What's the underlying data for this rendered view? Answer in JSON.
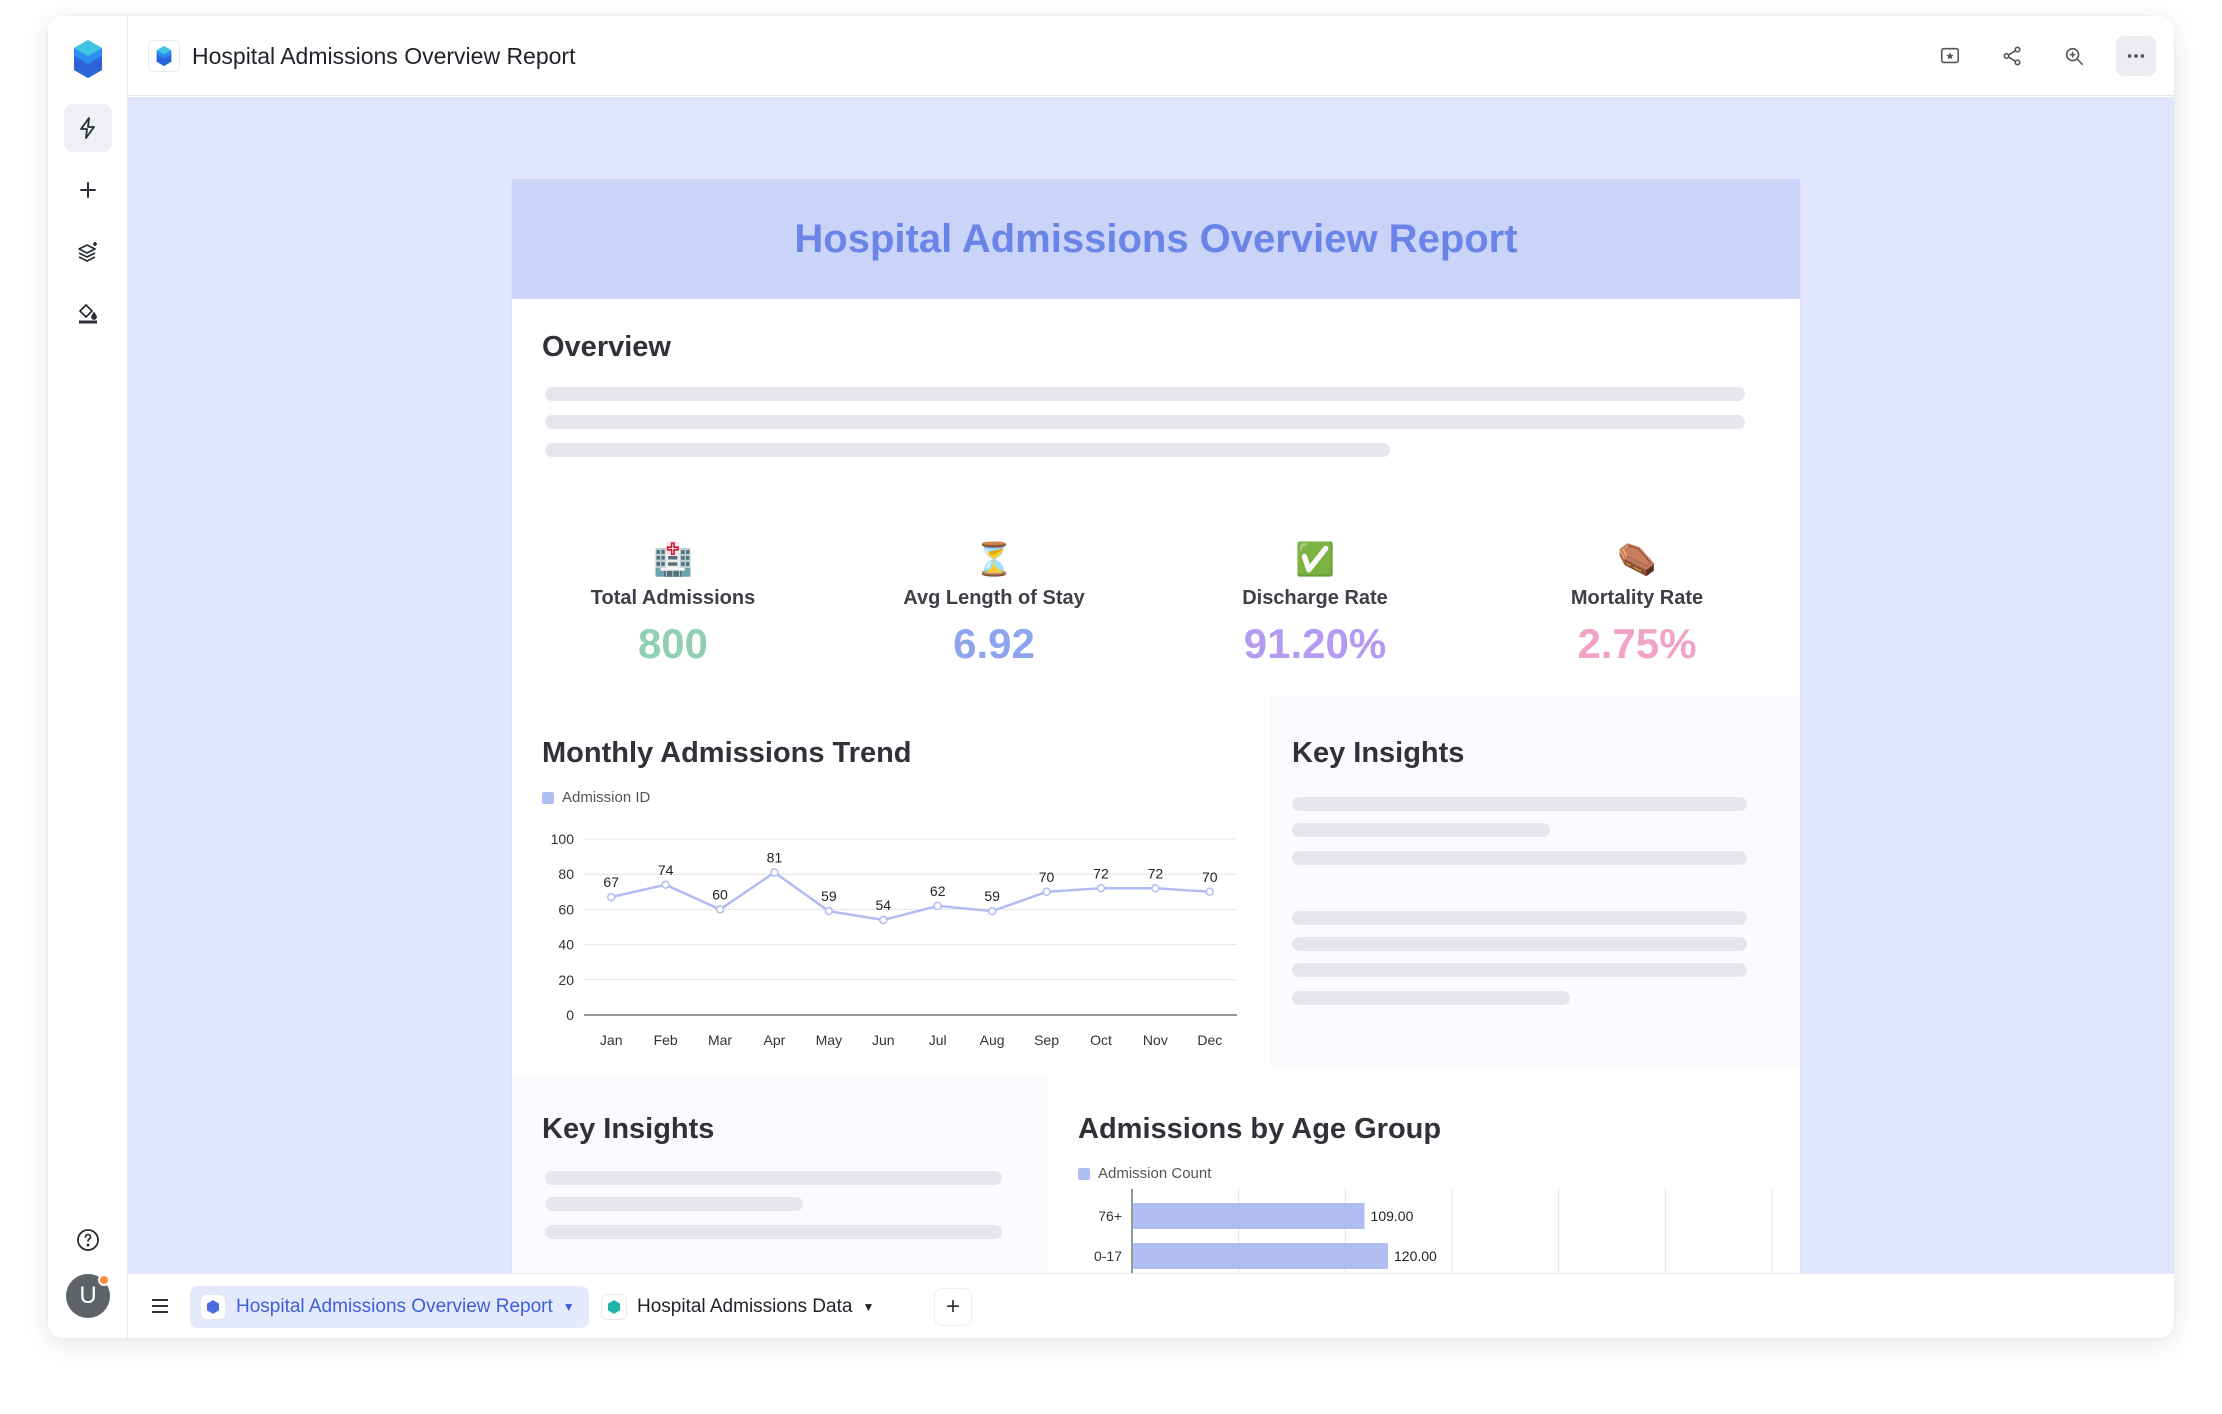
{
  "app": {
    "title": "Hospital Admissions Overview Report",
    "user_initial": "U"
  },
  "colors": {
    "accent": "#6a84e8",
    "kpi_green": "#90cfb1",
    "kpi_blue": "#8fa4ee",
    "kpi_purple": "#b49af0",
    "kpi_pink": "#f0a3c6",
    "series": "#b0bdf3"
  },
  "sidebar": {
    "items": [
      {
        "icon": "lightning-icon"
      },
      {
        "icon": "plus-icon"
      },
      {
        "icon": "layers-sparkle-icon"
      },
      {
        "icon": "paint-bucket-icon"
      },
      {
        "icon": "help-icon"
      }
    ]
  },
  "toolbar": {
    "actions": [
      "present-icon",
      "share-icon",
      "zoom-icon",
      "more-icon"
    ]
  },
  "report": {
    "header": "Hospital Admissions Overview Report",
    "overview_title": "Overview",
    "kpis": [
      {
        "icon": "🏥",
        "label": "Total Admissions",
        "value": "800"
      },
      {
        "icon": "⏳",
        "label": "Avg Length of Stay",
        "value": "6.92"
      },
      {
        "icon": "✅",
        "label": "Discharge Rate",
        "value": "91.20%"
      },
      {
        "icon": "⚰️",
        "label": "Mortality Rate",
        "value": "2.75%"
      }
    ],
    "trend_title": "Monthly Admissions Trend",
    "key_insights_title": "Key Insights",
    "key_insights_title_2": "Key Insights",
    "age_title": "Admissions by Age Group"
  },
  "chart_data": [
    {
      "type": "line",
      "title": "Monthly Admissions Trend",
      "series": [
        {
          "name": "Admission ID",
          "values": [
            67,
            74,
            60,
            81,
            59,
            54,
            62,
            59,
            70,
            72,
            72,
            70
          ]
        }
      ],
      "categories": [
        "Jan",
        "Feb",
        "Mar",
        "Apr",
        "May",
        "Jun",
        "Jul",
        "Aug",
        "Sep",
        "Oct",
        "Nov",
        "Dec"
      ],
      "ylim": [
        0,
        100
      ],
      "yticks": [
        0,
        20,
        40,
        60,
        80,
        100
      ],
      "grid": true,
      "legend": "top-left"
    },
    {
      "type": "bar",
      "orientation": "horizontal",
      "title": "Admissions by Age Group",
      "series": [
        {
          "name": "Admission Count",
          "values": [
            109.0,
            120.0
          ]
        }
      ],
      "categories": [
        "76+",
        "0-17"
      ],
      "value_labels": [
        "109.00",
        "120.00"
      ],
      "xlim": [
        0,
        300
      ],
      "grid": true,
      "legend": "top-left"
    }
  ],
  "bottom_tabs": [
    {
      "label": "Hospital Admissions Overview Report",
      "active": true
    },
    {
      "label": "Hospital Admissions Data",
      "active": false
    }
  ]
}
